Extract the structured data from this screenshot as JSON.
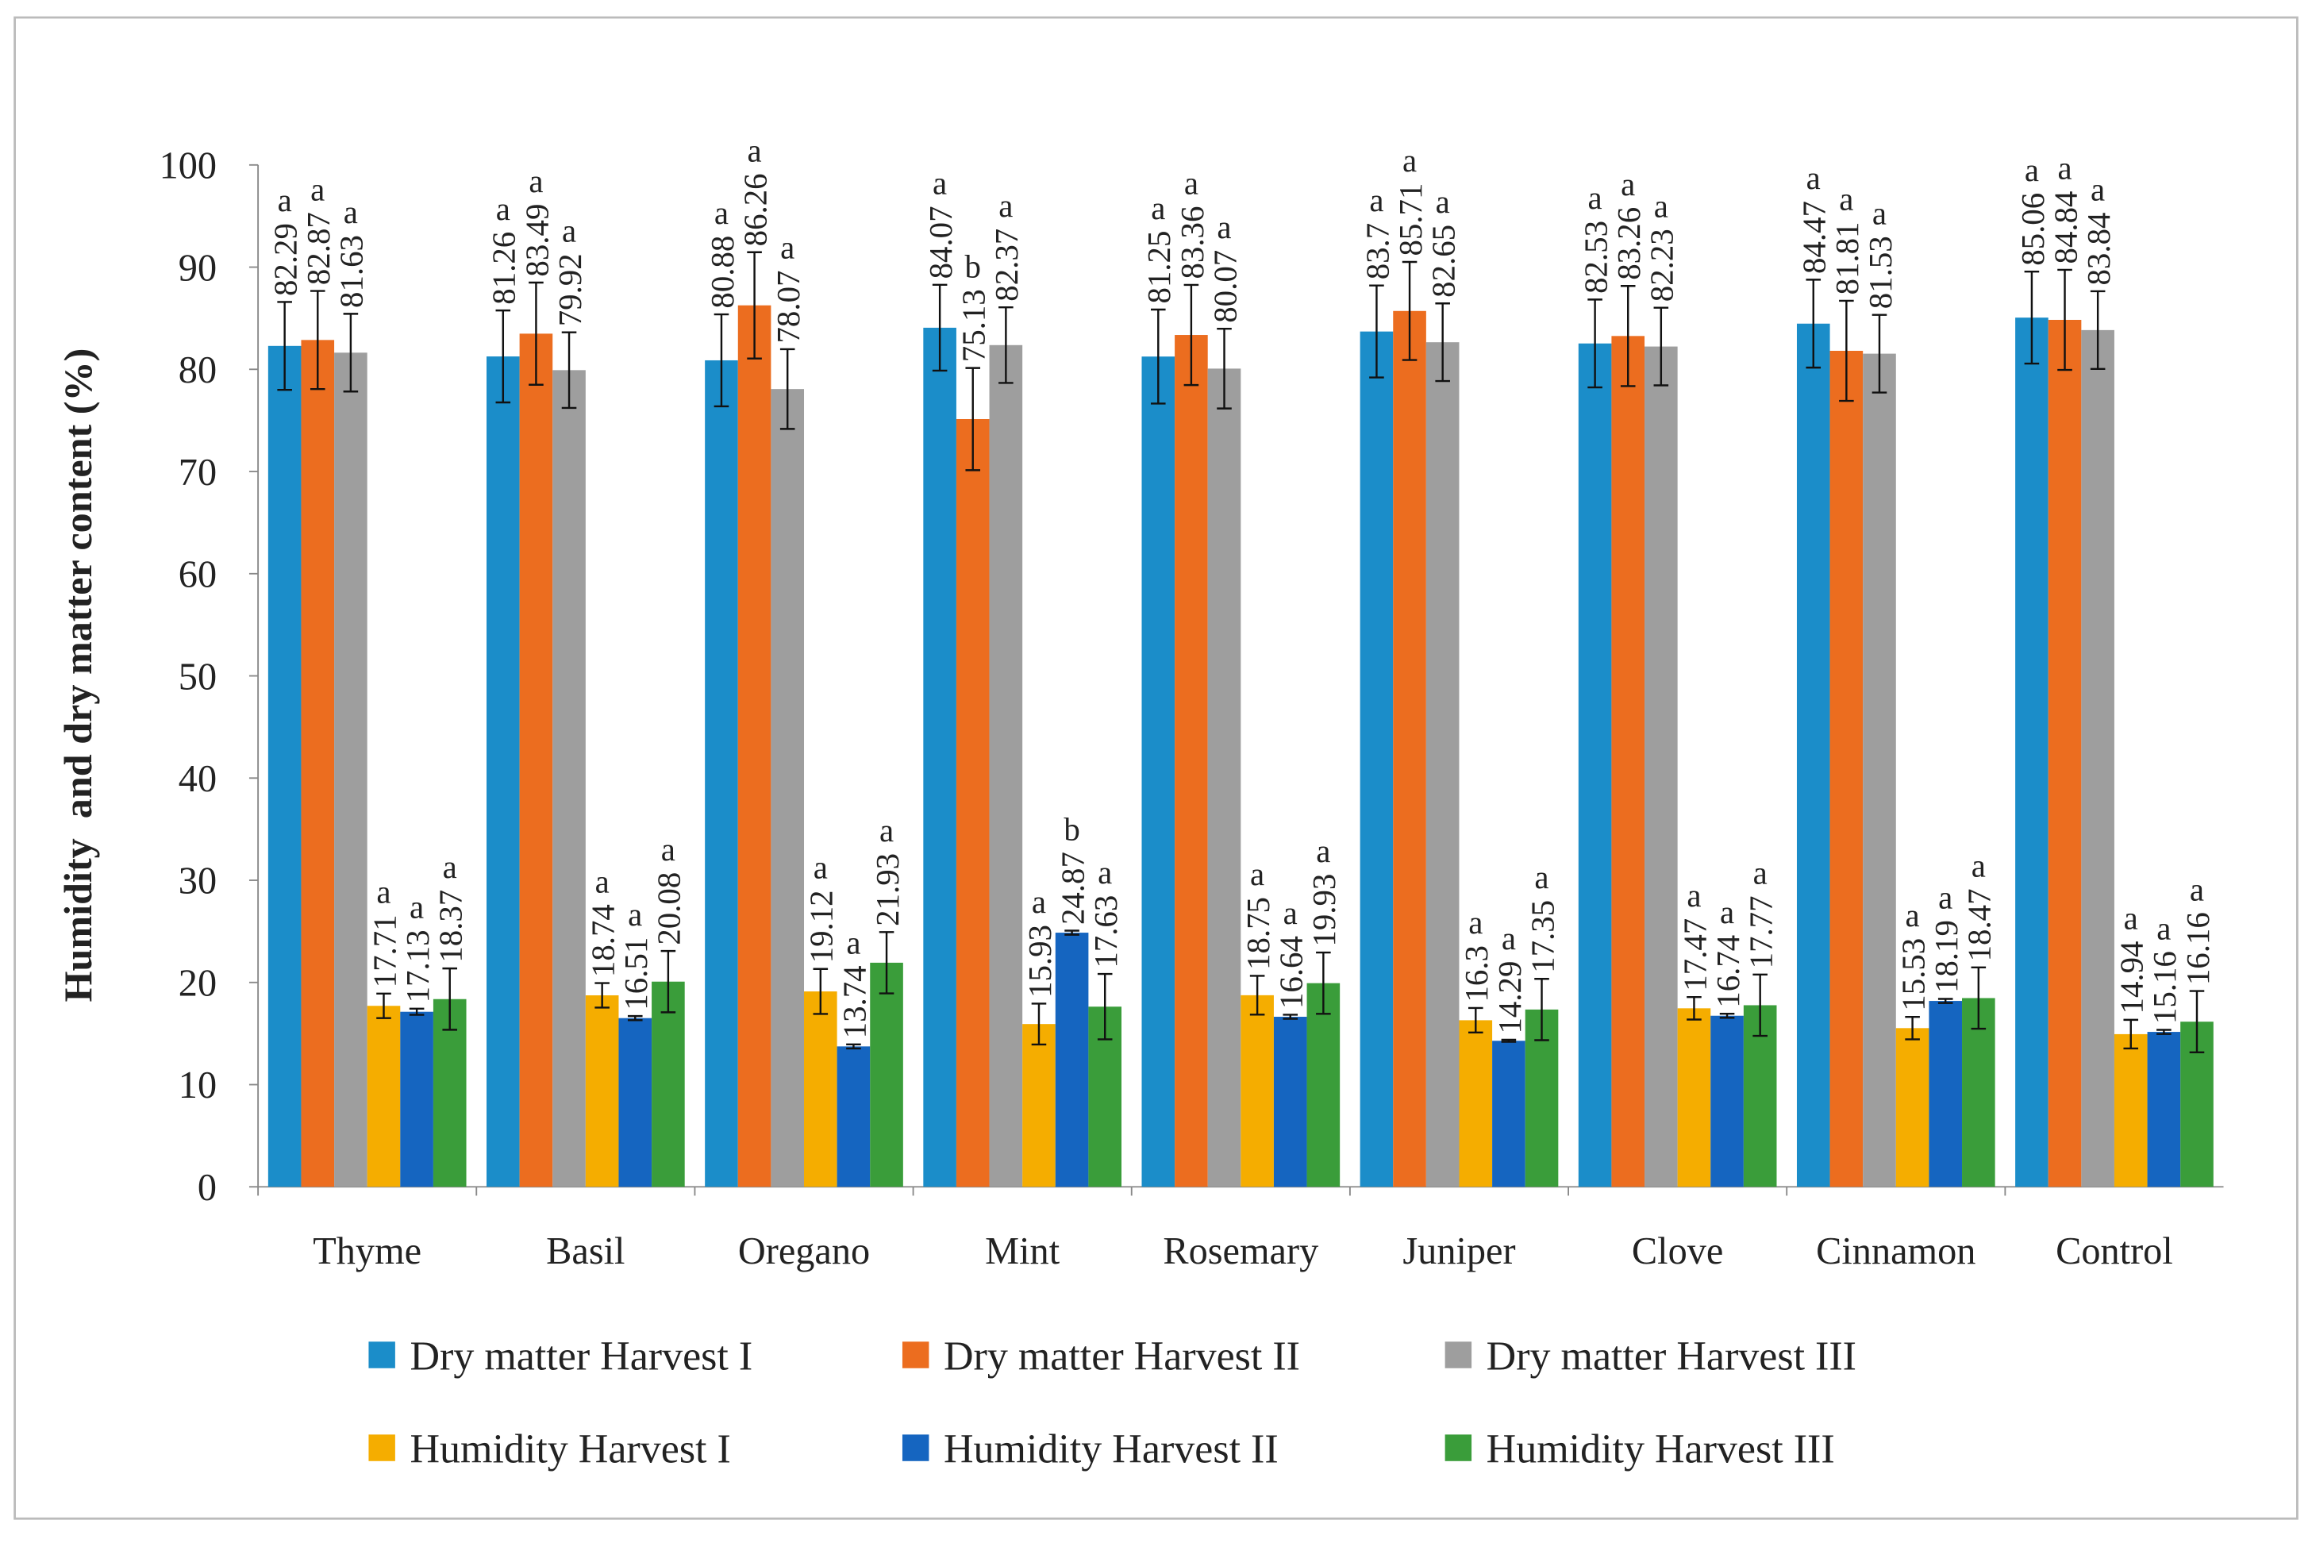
{
  "chart_data": {
    "type": "bar",
    "ylabel": "Humidity  and dry matter content (%)",
    "categories": [
      "Thyme",
      "Basil",
      "Oregano",
      "Mint",
      "Rosemary",
      "Juniper",
      "Clove",
      "Cinnamon",
      "Control"
    ],
    "ylim": [
      0,
      100
    ],
    "yticks": [
      0,
      10,
      20,
      30,
      40,
      50,
      60,
      70,
      80,
      90,
      100
    ],
    "grid": false,
    "legend": "bottom",
    "series": [
      {
        "name": "Dry matter Harvest I",
        "color": "#1b8dc9",
        "values": [
          82.29,
          81.26,
          80.88,
          84.07,
          81.25,
          83.7,
          82.53,
          84.47,
          85.06
        ],
        "errors": [
          4.3,
          4.5,
          4.5,
          4.2,
          4.6,
          4.5,
          4.3,
          4.3,
          4.5
        ],
        "letters": [
          "a",
          "a",
          "a",
          "a",
          "a",
          "a",
          "a",
          "a",
          "a"
        ]
      },
      {
        "name": "Dry matter Harvest II",
        "color": "#ec6d1f",
        "values": [
          82.87,
          83.49,
          86.26,
          75.13,
          83.36,
          85.71,
          83.26,
          81.81,
          84.84
        ],
        "errors": [
          4.8,
          5.0,
          5.2,
          5.0,
          4.9,
          4.8,
          4.9,
          4.9,
          4.9
        ],
        "letters": [
          "a",
          "a",
          "a",
          "b",
          "a",
          "a",
          "a",
          "a",
          "a"
        ]
      },
      {
        "name": "Dry matter Harvest III",
        "color": "#9e9e9e",
        "values": [
          81.63,
          79.92,
          78.07,
          82.37,
          80.07,
          82.65,
          82.23,
          81.53,
          83.84
        ],
        "errors": [
          3.8,
          3.7,
          3.9,
          3.7,
          3.9,
          3.8,
          3.8,
          3.8,
          3.8
        ],
        "letters": [
          "a",
          "a",
          "a",
          "a",
          "a",
          "a",
          "a",
          "a",
          "a"
        ]
      },
      {
        "name": "Humidity Harvest I",
        "color": "#f5ad00",
        "values": [
          17.71,
          18.74,
          19.12,
          15.93,
          18.75,
          16.3,
          17.47,
          15.53,
          14.94
        ],
        "errors": [
          1.2,
          1.2,
          2.2,
          2.0,
          1.9,
          1.2,
          1.1,
          1.1,
          1.4
        ],
        "letters": [
          "a",
          "a",
          "a",
          "a",
          "a",
          "a",
          "a",
          "a",
          "a"
        ]
      },
      {
        "name": "Humidity Harvest II",
        "color": "#1565c0",
        "values": [
          17.13,
          16.51,
          13.74,
          24.87,
          16.64,
          14.29,
          16.74,
          18.19,
          15.16
        ],
        "errors": [
          0.3,
          0.2,
          0.2,
          0.2,
          0.2,
          0.1,
          0.2,
          0.2,
          0.2
        ],
        "letters": [
          "a",
          "a",
          "a",
          "b",
          "a",
          "a",
          "a",
          "a",
          "a"
        ]
      },
      {
        "name": "Humidity Harvest III",
        "color": "#3a9d3a",
        "values": [
          18.37,
          20.08,
          21.93,
          17.63,
          19.93,
          17.35,
          17.77,
          18.47,
          16.16
        ],
        "errors": [
          3.0,
          3.0,
          3.0,
          3.2,
          3.0,
          3.0,
          3.0,
          3.0,
          3.0
        ],
        "letters": [
          "a",
          "a",
          "a",
          "a",
          "a",
          "a",
          "a",
          "a",
          "a"
        ]
      }
    ]
  }
}
